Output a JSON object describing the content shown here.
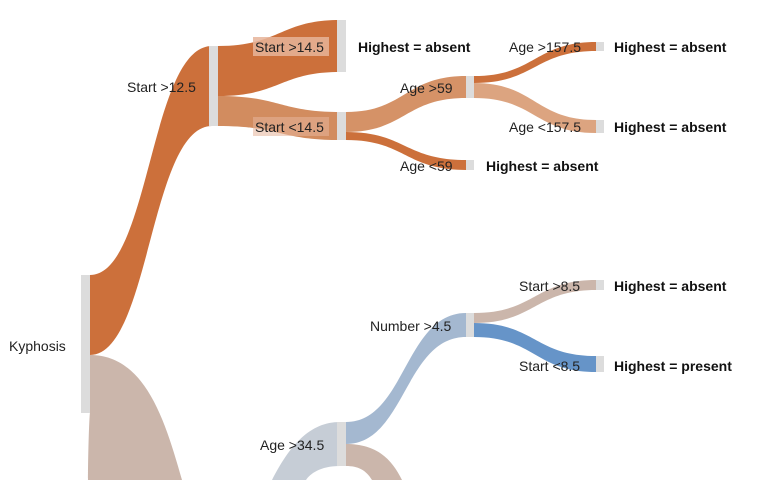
{
  "colors": {
    "orange": "#c8642a",
    "orange_light": "#d08656",
    "tan": "#c8b2a6",
    "blue_light": "#a4b8d0",
    "blue": "#6694c8",
    "node_bar": "#dcdcdc",
    "label_box": "#e6b49a"
  },
  "diagram": {
    "type": "sankey-decision-tree",
    "root": {
      "label": "Kyphosis"
    },
    "nodes": {
      "start_gt_12_5": "Start >12.5",
      "start_gt_14_5": "Start >14.5",
      "start_lt_14_5": "Start <14.5",
      "age_gt_59": "Age >59",
      "age_lt_59": "Age <59",
      "age_gt_157_5": "Age >157.5",
      "age_lt_157_5": "Age <157.5",
      "number_gt_4_5": "Number >4.5",
      "start_gt_8_5": "Start >8.5",
      "start_lt_8_5": "Start <8.5",
      "age_gt_34_5": "Age >34.5"
    },
    "leaves": {
      "leaf_start_gt_14_5": "Highest = absent",
      "leaf_age_gt_157_5": "Highest = absent",
      "leaf_age_lt_157_5": "Highest = absent",
      "leaf_age_lt_59": "Highest = absent",
      "leaf_start_gt_8_5": "Highest = absent",
      "leaf_start_lt_8_5": "Highest = present"
    }
  }
}
